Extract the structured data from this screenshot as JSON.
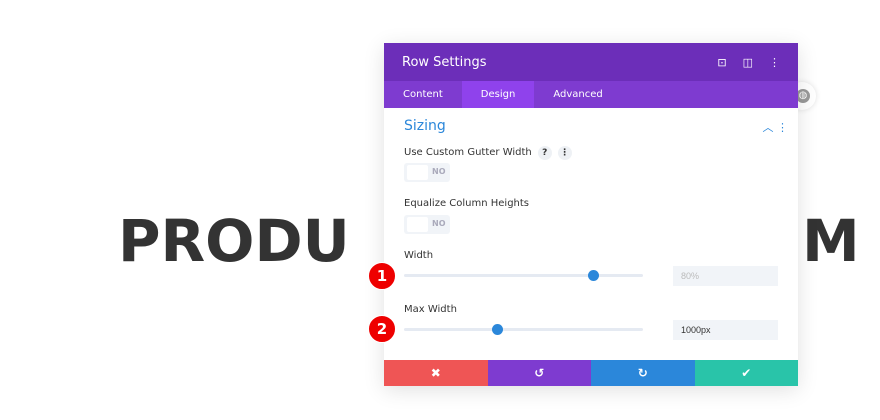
{
  "background": {
    "text_left": "PRODU",
    "text_right": "M"
  },
  "modal": {
    "title": "Row Settings",
    "header_icons": [
      "focus-icon",
      "split-view-icon",
      "more-vertical-icon"
    ],
    "tabs": [
      {
        "label": "Content"
      },
      {
        "label": "Design",
        "active": true
      },
      {
        "label": "Advanced"
      }
    ],
    "section": "Sizing",
    "gutter_label": "Use Custom Gutter Width",
    "gutter_value": "NO",
    "help": "?",
    "more": "⋮",
    "equalize_label": "Equalize Column Heights",
    "equalize_value": "NO",
    "width_label": "Width",
    "width_value": "80%",
    "width_slider": 0.79,
    "maxwidth_label": "Max Width",
    "maxwidth_value": "1000px",
    "maxwidth_slider": 0.39,
    "badges": [
      "1",
      "2"
    ],
    "footer": {
      "cancel": "✖",
      "undo": "↺",
      "redo": "↻",
      "save": "✔"
    }
  },
  "colors": {
    "header": "#6c2eb9",
    "tabs": "#7e3bd0",
    "accent": "#2b87da",
    "cancel": "#ef5555",
    "undo": "#7e3bd0",
    "redo": "#2b87da",
    "save": "#29c4a9"
  }
}
